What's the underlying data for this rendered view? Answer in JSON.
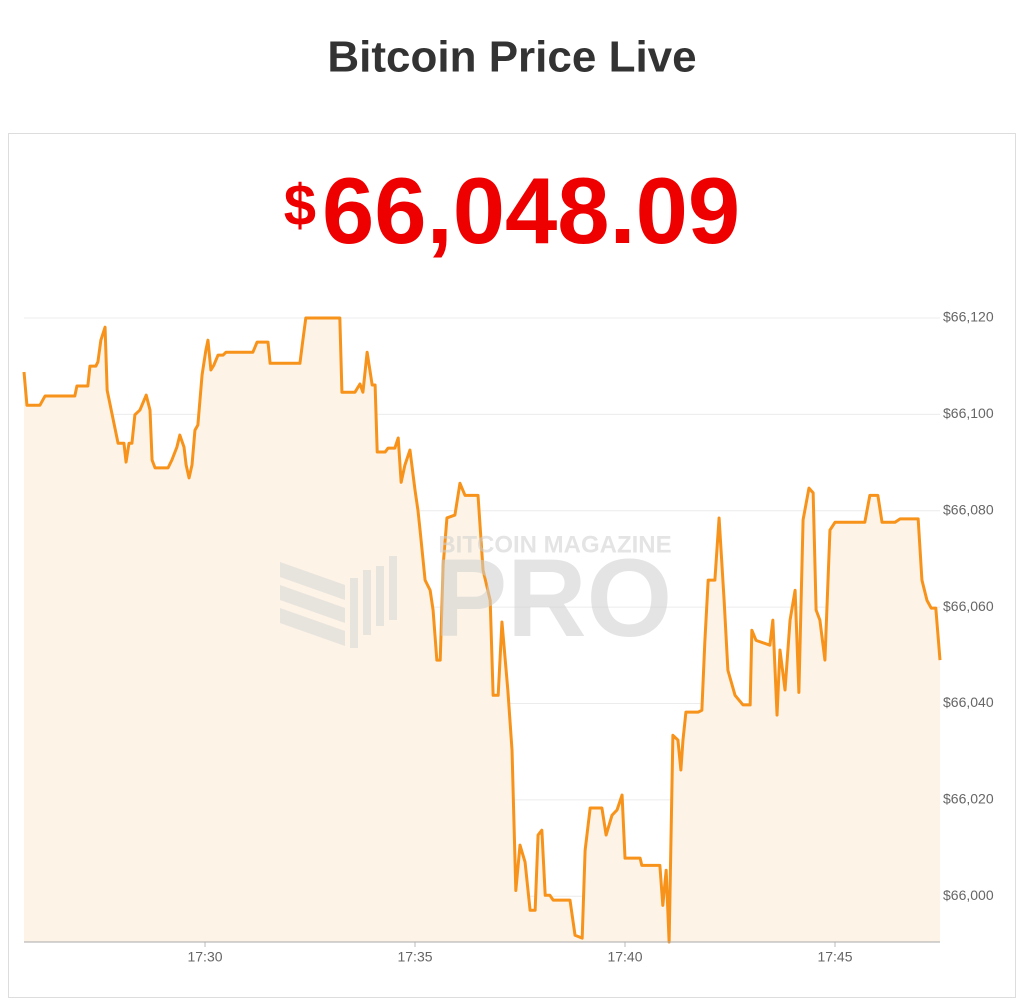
{
  "chart_data": {
    "type": "area",
    "title": "Bitcoin Price Live",
    "currency_symbol": "$",
    "current_price": "66,048.09",
    "watermark_top": "BITCOIN MAGAZINE",
    "watermark_main": "PRO",
    "line_color": "#f7931a",
    "fill_color": "#fdf3e7",
    "grid": true,
    "xlim": [
      1045.69,
      1067.5
    ],
    "xticks": [
      {
        "value": 1050,
        "label": "17:30"
      },
      {
        "value": 1055,
        "label": "17:35"
      },
      {
        "value": 1060,
        "label": "17:40"
      },
      {
        "value": 1065,
        "label": "17:45"
      }
    ],
    "ylim": [
      65990.5,
      66125
    ],
    "yticks": [
      {
        "value": 66000,
        "label": "$66,000"
      },
      {
        "value": 66020,
        "label": "$66,020"
      },
      {
        "value": 66040,
        "label": "$66,040"
      },
      {
        "value": 66060,
        "label": "$66,060"
      },
      {
        "value": 66080,
        "label": "$66,080"
      },
      {
        "value": 66100,
        "label": "$66,100"
      },
      {
        "value": 66120,
        "label": "$66,120"
      }
    ],
    "x": [
      1045.69,
      1045.76,
      1046.07,
      1046.19,
      1046.9,
      1046.95,
      1047.21,
      1047.26,
      1047.4,
      1047.45,
      1047.52,
      1047.62,
      1047.67,
      1047.79,
      1047.93,
      1048.07,
      1048.12,
      1048.19,
      1048.26,
      1048.33,
      1048.45,
      1048.6,
      1048.69,
      1048.74,
      1048.81,
      1049.12,
      1049.21,
      1049.33,
      1049.4,
      1049.5,
      1049.55,
      1049.62,
      1049.69,
      1049.76,
      1049.83,
      1049.93,
      1050.02,
      1050.07,
      1050.14,
      1050.21,
      1050.31,
      1050.43,
      1050.5,
      1051.14,
      1051.24,
      1051.5,
      1051.55,
      1052.26,
      1052.33,
      1052.4,
      1053.21,
      1053.26,
      1053.57,
      1053.69,
      1053.76,
      1053.86,
      1053.98,
      1054.05,
      1054.1,
      1054.29,
      1054.36,
      1054.52,
      1054.6,
      1054.67,
      1054.76,
      1054.88,
      1055.0,
      1055.07,
      1055.12,
      1055.24,
      1055.36,
      1055.43,
      1055.52,
      1055.6,
      1055.67,
      1055.76,
      1055.95,
      1056.07,
      1056.19,
      1056.5,
      1056.62,
      1056.79,
      1056.86,
      1056.98,
      1057.07,
      1057.21,
      1057.31,
      1057.4,
      1057.5,
      1057.62,
      1057.74,
      1057.86,
      1057.93,
      1058.02,
      1058.1,
      1058.21,
      1058.29,
      1058.69,
      1058.81,
      1058.98,
      1059.05,
      1059.17,
      1059.45,
      1059.55,
      1059.69,
      1059.81,
      1059.93,
      1060.0,
      1060.36,
      1060.4,
      1060.83,
      1060.9,
      1060.98,
      1061.05,
      1061.14,
      1061.26,
      1061.33,
      1061.38,
      1061.45,
      1061.74,
      1061.83,
      1061.9,
      1061.98,
      1062.14,
      1062.24,
      1062.36,
      1062.45,
      1062.62,
      1062.81,
      1062.98,
      1063.02,
      1063.12,
      1063.45,
      1063.52,
      1063.62,
      1063.69,
      1063.81,
      1063.93,
      1064.05,
      1064.14,
      1064.24,
      1064.38,
      1064.48,
      1064.55,
      1064.64,
      1064.76,
      1064.88,
      1065.0,
      1065.71,
      1065.83,
      1066.02,
      1066.12,
      1066.43,
      1066.55,
      1066.98,
      1067.07,
      1067.19,
      1067.29,
      1067.4,
      1067.5
    ],
    "values": [
      66108.8,
      66101.9,
      66101.9,
      66103.8,
      66103.8,
      66105.9,
      66105.9,
      66110.0,
      66110.0,
      66110.9,
      66115.4,
      66118.1,
      66105.0,
      66099.9,
      66094.0,
      66094.0,
      66090.1,
      66094.0,
      66094.0,
      66099.9,
      66100.9,
      66104.0,
      66100.9,
      66090.5,
      66088.9,
      66088.9,
      66090.5,
      66093.2,
      66095.7,
      66093.2,
      66089.5,
      66086.8,
      66089.5,
      66096.7,
      66097.8,
      66108.2,
      66113.3,
      66115.4,
      66109.2,
      66110.2,
      66112.3,
      66112.3,
      66112.9,
      66112.9,
      66115.0,
      66115.0,
      66110.6,
      66110.6,
      66115.4,
      66120.0,
      66120.0,
      66104.6,
      66104.6,
      66106.3,
      66104.6,
      66112.9,
      66106.1,
      66106.1,
      66092.2,
      66092.2,
      66093.0,
      66093.0,
      66095.1,
      66085.9,
      66089.5,
      66092.6,
      66084.3,
      66080.1,
      66076.0,
      66065.6,
      66063.5,
      66059.4,
      66049.0,
      66049.0,
      66068.7,
      66078.5,
      66079.1,
      66085.7,
      66083.2,
      66083.2,
      66067.7,
      66061.4,
      66041.7,
      66041.7,
      66056.9,
      66042.8,
      66030.3,
      66001.2,
      66010.6,
      66007.1,
      65997.1,
      65997.1,
      66012.7,
      66013.7,
      66000.2,
      66000.2,
      65999.2,
      65999.2,
      65991.9,
      65991.3,
      66009.5,
      66018.3,
      66018.3,
      66012.7,
      66016.8,
      66017.9,
      66021.0,
      66007.9,
      66007.9,
      66006.4,
      66006.4,
      65998.1,
      66005.4,
      65990.5,
      66033.4,
      66032.4,
      66026.2,
      66032.4,
      66038.2,
      66038.2,
      66038.6,
      66052.7,
      66065.6,
      66065.6,
      66078.5,
      66061.4,
      66046.9,
      66041.7,
      66039.7,
      66039.7,
      66055.2,
      66053.1,
      66052.1,
      66057.3,
      66037.6,
      66051.1,
      66042.8,
      66057.3,
      66063.5,
      66042.3,
      66078.1,
      66084.7,
      66083.7,
      66059.4,
      66057.3,
      66049.0,
      66076.0,
      66077.6,
      66077.6,
      66083.2,
      66083.2,
      66077.6,
      66077.6,
      66078.3,
      66078.3,
      66065.6,
      66061.4,
      66059.8,
      66059.8,
      66049.0
    ]
  }
}
